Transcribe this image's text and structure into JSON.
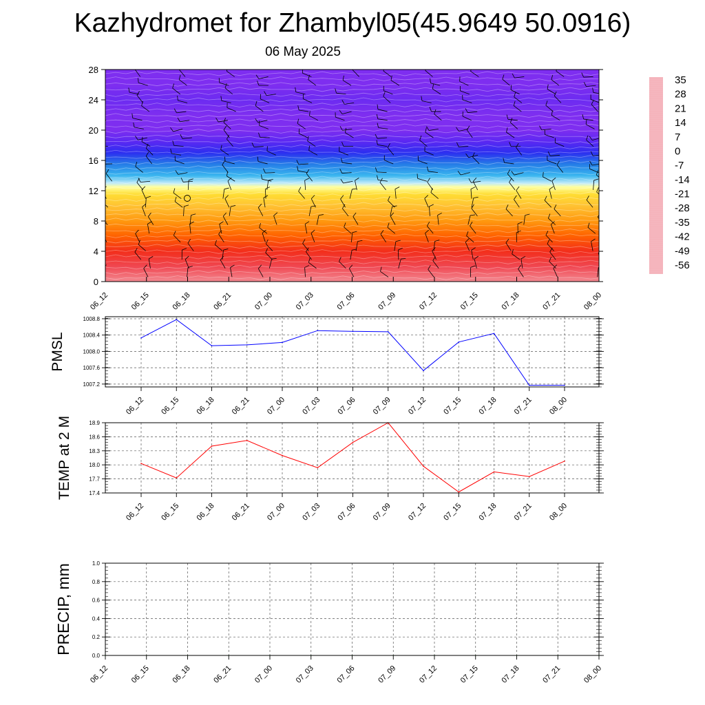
{
  "header": {
    "title": "Kazhydromet for Zhambyl05(45.9649 50.0916)",
    "subtitle": "06 May 2025"
  },
  "chart_data": [
    {
      "type": "heatmap",
      "title": "",
      "xlabel": "",
      "ylabel": "",
      "x": [
        "06_12",
        "06_15",
        "06_18",
        "06_21",
        "07_00",
        "07_03",
        "07_06",
        "07_09",
        "07_12",
        "07_15",
        "07_18",
        "07_21",
        "08_00"
      ],
      "yticks": [
        0,
        4,
        8,
        12,
        16,
        20,
        24,
        28
      ],
      "ylim": [
        0,
        28
      ],
      "temperature_profile": [
        {
          "level": 0,
          "value": 33
        },
        {
          "level": 2,
          "value": 30
        },
        {
          "level": 4,
          "value": 26
        },
        {
          "level": 6,
          "value": 20
        },
        {
          "level": 8,
          "value": 12
        },
        {
          "level": 10,
          "value": 5
        },
        {
          "level": 11.5,
          "value": 0
        },
        {
          "level": 12.5,
          "value": -7
        },
        {
          "level": 13,
          "value": -15
        },
        {
          "level": 14,
          "value": -25
        },
        {
          "level": 15.5,
          "value": -33
        },
        {
          "level": 17,
          "value": -42
        },
        {
          "level": 18.5,
          "value": -52
        },
        {
          "level": 20,
          "value": -57
        },
        {
          "level": 22,
          "value": -58
        },
        {
          "level": 24,
          "value": -54
        },
        {
          "level": 26,
          "value": -58
        },
        {
          "level": 28,
          "value": -60
        }
      ],
      "wind_barbs": "present",
      "colorbar": {
        "labels": [
          "35",
          "28",
          "21",
          "14",
          "7",
          "0",
          "-7",
          "-14",
          "-21",
          "-28",
          "-35",
          "-42",
          "-49",
          "-56"
        ],
        "values": [
          35,
          28,
          21,
          14,
          7,
          0,
          -7,
          -14,
          -21,
          -28,
          -35,
          -42,
          -49,
          -56
        ],
        "colors": [
          "#f5b3bb",
          "#ee1c26",
          "#ff5a00",
          "#ff8c00",
          "#ffb733",
          "#ffdd33",
          "#ffffa0",
          "#cfeffa",
          "#66ccf4",
          "#19a5eb",
          "#2a6de6",
          "#2c2ff0",
          "#4024f4",
          "#7e2ef0"
        ]
      },
      "grid": false
    },
    {
      "type": "line",
      "ylabel": "PMSL",
      "x": [
        "06_12",
        "06_15",
        "06_18",
        "06_21",
        "07_00",
        "07_03",
        "07_06",
        "07_09",
        "07_12",
        "07_15",
        "07_18",
        "07_21",
        "08_00"
      ],
      "values": [
        1008.33,
        1008.78,
        1008.14,
        1008.16,
        1008.22,
        1008.51,
        1008.49,
        1008.48,
        1007.53,
        1008.23,
        1008.44,
        1007.17,
        1007.17
      ],
      "yticks": [
        1007.2,
        1007.6,
        1008.0,
        1008.4,
        1008.8
      ],
      "ytick_labels": [
        "1007.2",
        "1007.6",
        "1008.0",
        "1008.4",
        "1008.8"
      ],
      "ylim": [
        1007.13,
        1008.85
      ],
      "color": "#0000ff",
      "grid": true
    },
    {
      "type": "line",
      "ylabel": "TEMP at 2 M",
      "x": [
        "06_12",
        "06_15",
        "06_18",
        "06_21",
        "07_00",
        "07_03",
        "07_06",
        "07_09",
        "07_12",
        "07_15",
        "07_18",
        "07_21",
        "08_00"
      ],
      "values": [
        18.03,
        17.72,
        18.4,
        18.52,
        18.2,
        17.94,
        18.48,
        18.9,
        17.97,
        17.42,
        17.85,
        17.75,
        18.08
      ],
      "yticks": [
        17.4,
        17.7,
        18.0,
        18.3,
        18.6,
        18.9
      ],
      "ytick_labels": [
        "17.4",
        "17.7",
        "18.0",
        "18.3",
        "18.6",
        "18.9"
      ],
      "ylim": [
        17.4,
        18.9
      ],
      "color": "#ff0000",
      "grid": true
    },
    {
      "type": "line",
      "ylabel": "PRECIP, mm",
      "x": [
        "06_12",
        "06_15",
        "06_18",
        "06_21",
        "07_00",
        "07_03",
        "07_06",
        "07_09",
        "07_12",
        "07_15",
        "07_18",
        "07_21",
        "08_00"
      ],
      "values": [
        0,
        0,
        0,
        0,
        0,
        0,
        0,
        0,
        0,
        0,
        0,
        0,
        0
      ],
      "yticks": [
        0.0,
        0.2,
        0.4,
        0.6,
        0.8,
        1.0
      ],
      "ytick_labels": [
        "0.0",
        "0.2",
        "0.4",
        "0.6",
        "0.8",
        "1.0"
      ],
      "ylim": [
        0,
        1
      ],
      "color": "#006400",
      "grid": true
    }
  ]
}
